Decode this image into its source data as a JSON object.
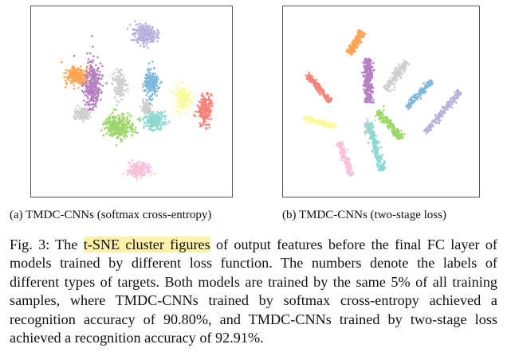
{
  "figure": {
    "panels": [
      {
        "caption": "(a) TMDC-CNNs (softmax cross-entropy)",
        "clusters": [
          {
            "label": "0",
            "color": "#fba557"
          },
          {
            "label": "1",
            "color": "#b67fc4"
          },
          {
            "label": "2",
            "color": "#cfcfcf"
          },
          {
            "label": "3",
            "color": "#fafb95"
          },
          {
            "label": "4",
            "color": "#7fb8dc"
          },
          {
            "label": "5",
            "color": "#8ed8cf"
          },
          {
            "label": "6",
            "color": "#9dd66a"
          },
          {
            "label": "7",
            "color": "#f68279"
          },
          {
            "label": "8",
            "color": "#b7b1dc"
          },
          {
            "label": "9",
            "color": "#f8c1dc"
          }
        ]
      },
      {
        "caption": "(b) TMDC-CNNs (two-stage loss)",
        "clusters": [
          {
            "label": "0",
            "color": "#fba557"
          },
          {
            "label": "1",
            "color": "#b67fc4"
          },
          {
            "label": "2",
            "color": "#cfcfcf"
          },
          {
            "label": "3",
            "color": "#fafb95"
          },
          {
            "label": "4",
            "color": "#7fb8dc"
          },
          {
            "label": "5",
            "color": "#8ed8cf"
          },
          {
            "label": "6",
            "color": "#9dd66a"
          },
          {
            "label": "7",
            "color": "#f68279"
          },
          {
            "label": "8",
            "color": "#b7b1dc"
          },
          {
            "label": "9",
            "color": "#f8c1dc"
          }
        ]
      }
    ],
    "caption": {
      "prefix": "Fig. 3: The ",
      "highlight": "t-SNE cluster figures",
      "rest": " of output features before the final FC layer of models trained by different loss function. The numbers denote the labels of different types of targets. Both models are trained by the same 5% of all training samples, where TMDC-CNNs trained by softmax cross-entropy achieved a recognition accuracy of 90.80%, and TMDC-CNNs trained by two-stage loss achieved a recognition accuracy of 92.91%."
    }
  }
}
